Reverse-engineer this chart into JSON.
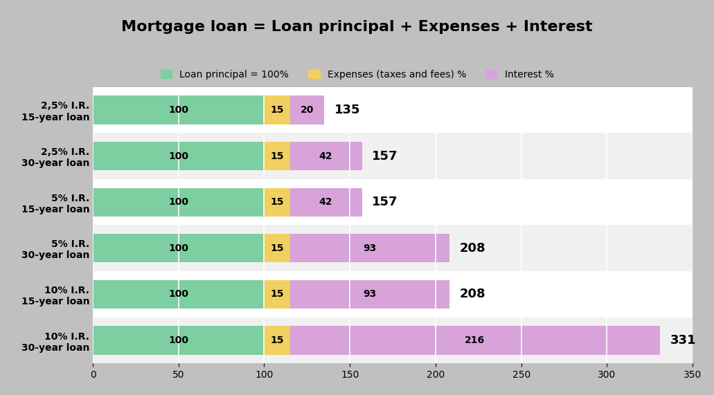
{
  "title": "Mortgage loan = Loan principal + Expenses + Interest",
  "categories": [
    "2,5% I.R.\n15-year loan",
    "2,5% I.R.\n30-year loan",
    "5% I.R.\n15-year loan",
    "5% I.R.\n30-year loan",
    "10% I.R.\n15-year loan",
    "10% I.R.\n30-year loan"
  ],
  "principal": [
    100,
    100,
    100,
    100,
    100,
    100
  ],
  "expenses": [
    15,
    15,
    15,
    15,
    15,
    15
  ],
  "interest": [
    20,
    42,
    42,
    93,
    93,
    216
  ],
  "totals": [
    135,
    157,
    157,
    208,
    208,
    331
  ],
  "principal_color": "#7DCEA0",
  "expenses_color": "#F0D060",
  "interest_color": "#D7A3D9",
  "principal_label": "Loan principal = 100%",
  "expenses_label": "Expenses (taxes and fees) %",
  "interest_label": "Interest %",
  "xlim": [
    0,
    350
  ],
  "xticks": [
    0,
    50,
    100,
    150,
    200,
    250,
    300,
    350
  ],
  "bar_height": 0.62,
  "background_color": "#C0C0C0",
  "plot_background_odd": "#F0F0F0",
  "plot_background_even": "#FFFFFF",
  "title_fontsize": 16,
  "label_fontsize": 10,
  "tick_fontsize": 10,
  "bar_label_fontsize": 10,
  "total_fontsize": 13
}
